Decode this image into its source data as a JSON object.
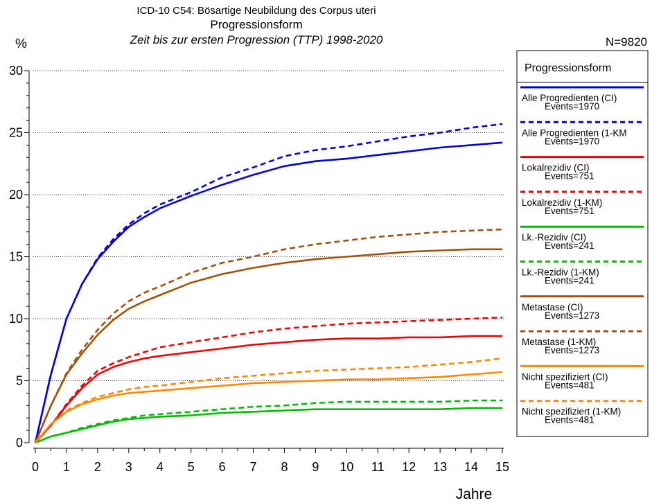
{
  "chart_data": {
    "type": "line",
    "title": "ICD-10 C54: Bösartige Neubildung des Corpus uteri",
    "subtitle": "Progressionsform",
    "subtitle2": "Zeit bis zur ersten Progression (TTP) 1998-2020",
    "n_label": "N=9820",
    "ylabel": "%",
    "xlabel": "Jahre",
    "xlim": [
      0,
      15
    ],
    "ylim": [
      0,
      30
    ],
    "x_ticks": [
      0,
      1,
      2,
      3,
      4,
      5,
      6,
      7,
      8,
      9,
      10,
      11,
      12,
      13,
      14,
      15
    ],
    "y_ticks": [
      0,
      5,
      10,
      15,
      20,
      25,
      30
    ],
    "grid": "horizontal dotted",
    "legend_title": "Progressionsform",
    "legend_position": "right",
    "x": [
      0,
      0.5,
      1,
      1.5,
      2,
      2.5,
      3,
      3.5,
      4,
      5,
      6,
      7,
      8,
      9,
      10,
      11,
      12,
      13,
      14,
      15
    ],
    "series": [
      {
        "name": "Alle Progredienten (CI)",
        "events": "Events=1970",
        "color": "#0000dd",
        "dash": false,
        "values": [
          0,
          5.5,
          10,
          12.8,
          14.8,
          16.2,
          17.4,
          18.2,
          18.9,
          19.9,
          20.8,
          21.6,
          22.3,
          22.7,
          22.9,
          23.2,
          23.5,
          23.8,
          24.0,
          24.2
        ]
      },
      {
        "name": "Alle Progredienten (1-KM",
        "events": "Events=1970",
        "color": "#0000dd",
        "dash": true,
        "values": [
          0,
          5.5,
          10,
          12.8,
          14.9,
          16.4,
          17.6,
          18.5,
          19.2,
          20.2,
          21.4,
          22.2,
          23.1,
          23.6,
          23.9,
          24.3,
          24.7,
          25.0,
          25.4,
          25.7
        ]
      },
      {
        "name": "Lokalrezidiv (CI)",
        "events": "Events=751",
        "color": "#ee0000",
        "dash": false,
        "values": [
          0,
          1.4,
          3.0,
          4.4,
          5.5,
          6.1,
          6.5,
          6.8,
          7.0,
          7.3,
          7.6,
          7.9,
          8.1,
          8.3,
          8.4,
          8.4,
          8.5,
          8.5,
          8.6,
          8.6
        ]
      },
      {
        "name": "Lokalrezidiv (1-KM)",
        "events": "Events=751",
        "color": "#ee0000",
        "dash": true,
        "values": [
          0,
          1.4,
          3.1,
          4.6,
          5.8,
          6.4,
          6.9,
          7.3,
          7.7,
          8.1,
          8.5,
          8.9,
          9.2,
          9.4,
          9.6,
          9.7,
          9.8,
          9.9,
          10.0,
          10.1
        ]
      },
      {
        "name": "Lk.-Rezidiv (CI)",
        "events": "Events=241",
        "color": "#00bb00",
        "dash": false,
        "values": [
          0,
          0.5,
          0.8,
          1.1,
          1.4,
          1.7,
          1.9,
          2.0,
          2.1,
          2.2,
          2.4,
          2.5,
          2.6,
          2.7,
          2.7,
          2.7,
          2.7,
          2.7,
          2.8,
          2.8
        ]
      },
      {
        "name": "Lk.-Rezidiv (1-KM)",
        "events": "Events=241",
        "color": "#00bb00",
        "dash": true,
        "values": [
          0,
          0.5,
          0.8,
          1.2,
          1.5,
          1.8,
          2.0,
          2.2,
          2.3,
          2.5,
          2.7,
          2.9,
          3.0,
          3.2,
          3.3,
          3.3,
          3.3,
          3.3,
          3.4,
          3.4
        ]
      },
      {
        "name": "Metastase (CI)",
        "events": "Events=1273",
        "color": "#a0520a",
        "dash": false,
        "values": [
          0,
          3.0,
          5.5,
          7.2,
          8.7,
          9.9,
          10.8,
          11.4,
          11.9,
          12.9,
          13.6,
          14.1,
          14.5,
          14.8,
          15.0,
          15.2,
          15.4,
          15.5,
          15.6,
          15.6
        ]
      },
      {
        "name": "Metastase (1-KM)",
        "events": "Events=1273",
        "color": "#a0520a",
        "dash": true,
        "values": [
          0,
          3.0,
          5.6,
          7.5,
          9.1,
          10.4,
          11.4,
          12.1,
          12.6,
          13.7,
          14.5,
          15.0,
          15.6,
          16.0,
          16.3,
          16.6,
          16.8,
          17.0,
          17.1,
          17.2
        ]
      },
      {
        "name": "Nicht spezifiziert (CI)",
        "events": "Events=481",
        "color": "#ff8800",
        "dash": false,
        "values": [
          0,
          1.5,
          2.5,
          3.1,
          3.5,
          3.8,
          4.0,
          4.1,
          4.2,
          4.4,
          4.6,
          4.8,
          4.9,
          5.0,
          5.1,
          5.1,
          5.2,
          5.3,
          5.5,
          5.7
        ]
      },
      {
        "name": "Nicht spezifiziert (1-KM)",
        "events": "Events=481",
        "color": "#ff8800",
        "dash": true,
        "values": [
          0,
          1.5,
          2.6,
          3.2,
          3.7,
          4.0,
          4.3,
          4.5,
          4.6,
          4.9,
          5.2,
          5.4,
          5.6,
          5.8,
          5.9,
          6.0,
          6.1,
          6.3,
          6.5,
          6.8
        ]
      }
    ]
  }
}
